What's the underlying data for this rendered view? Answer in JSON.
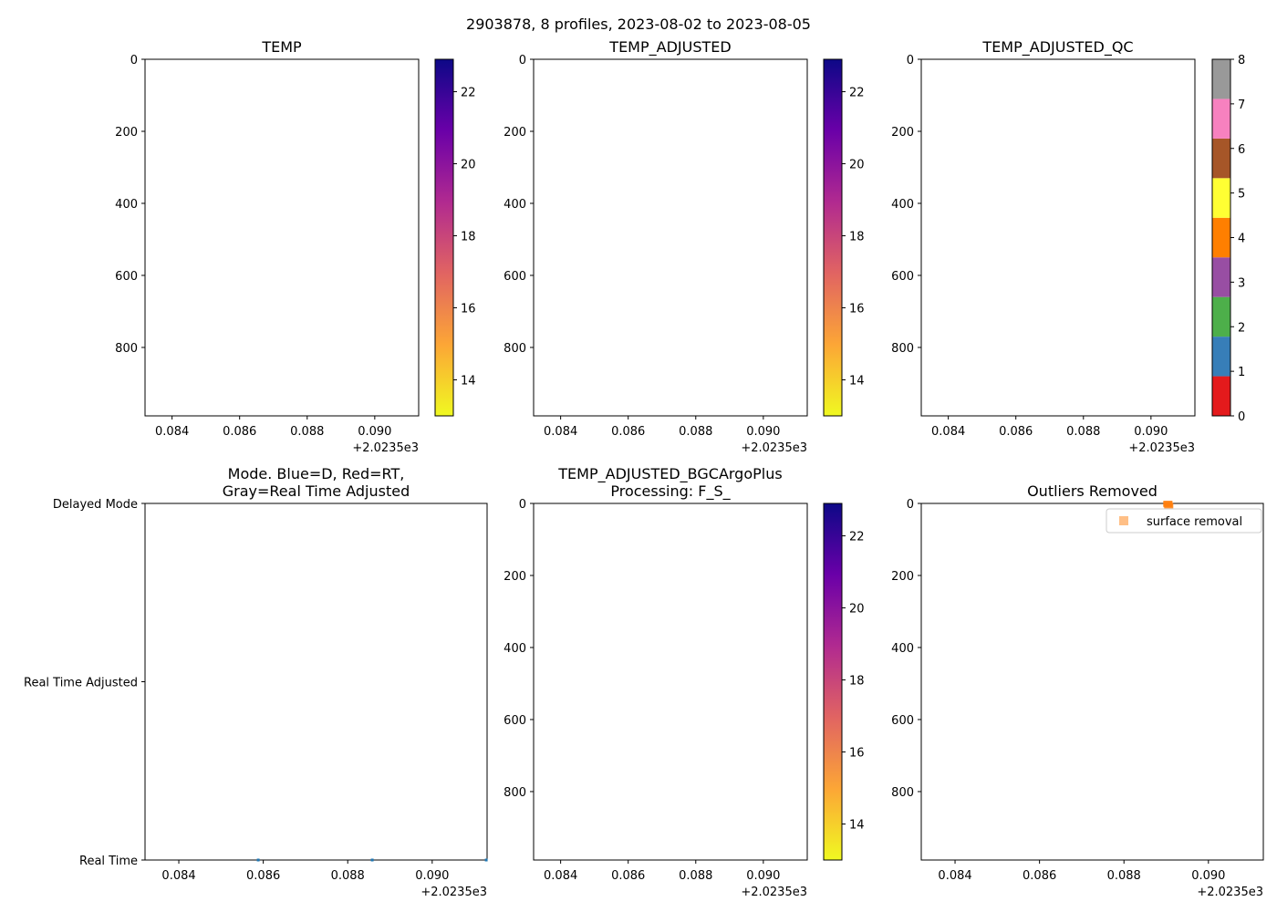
{
  "figure_title": "2903878, 8 profiles, 2023-08-02 to 2023-08-05",
  "chart_data": [
    {
      "id": "temp",
      "type": "heatmap",
      "title": "TEMP",
      "x_ticks": [
        "0.084",
        "0.086",
        "0.088",
        "0.090"
      ],
      "x_tick_values": [
        0.084,
        0.086,
        0.088,
        0.09
      ],
      "xlim": [
        0.0832,
        0.0913
      ],
      "x_offset_label": "+2.0235e3",
      "y_ticks": [
        "0",
        "200",
        "400",
        "600",
        "800"
      ],
      "y_tick_values": [
        0,
        200,
        400,
        600,
        800
      ],
      "ylim": [
        990,
        0
      ],
      "y_inverted": true,
      "colorbar": {
        "type": "continuous",
        "colormap": "plasma_r",
        "range": [
          13.0,
          22.9
        ],
        "ticks": [
          "14",
          "16",
          "18",
          "20",
          "22"
        ],
        "tick_values": [
          14,
          16,
          18,
          20,
          22
        ]
      },
      "values": []
    },
    {
      "id": "temp_adjusted",
      "type": "heatmap",
      "title": "TEMP_ADJUSTED",
      "x_ticks": [
        "0.084",
        "0.086",
        "0.088",
        "0.090"
      ],
      "x_tick_values": [
        0.084,
        0.086,
        0.088,
        0.09
      ],
      "xlim": [
        0.0832,
        0.0913
      ],
      "x_offset_label": "+2.0235e3",
      "y_ticks": [
        "0",
        "200",
        "400",
        "600",
        "800"
      ],
      "y_tick_values": [
        0,
        200,
        400,
        600,
        800
      ],
      "ylim": [
        990,
        0
      ],
      "y_inverted": true,
      "colorbar": {
        "type": "continuous",
        "colormap": "plasma_r",
        "range": [
          13.0,
          22.9
        ],
        "ticks": [
          "14",
          "16",
          "18",
          "20",
          "22"
        ],
        "tick_values": [
          14,
          16,
          18,
          20,
          22
        ]
      },
      "values": []
    },
    {
      "id": "temp_adjusted_qc",
      "type": "heatmap",
      "title": "TEMP_ADJUSTED_QC",
      "x_ticks": [
        "0.084",
        "0.086",
        "0.088",
        "0.090"
      ],
      "x_tick_values": [
        0.084,
        0.086,
        0.088,
        0.09
      ],
      "xlim": [
        0.0832,
        0.0913
      ],
      "x_offset_label": "+2.0235e3",
      "y_ticks": [
        "0",
        "200",
        "400",
        "600",
        "800"
      ],
      "y_tick_values": [
        0,
        200,
        400,
        600,
        800
      ],
      "ylim": [
        990,
        0
      ],
      "y_inverted": true,
      "colorbar": {
        "type": "discrete",
        "range": [
          0,
          8
        ],
        "ticks": [
          "0",
          "1",
          "2",
          "3",
          "4",
          "5",
          "6",
          "7",
          "8"
        ],
        "tick_values": [
          0,
          1,
          2,
          3,
          4,
          5,
          6,
          7,
          8
        ],
        "segment_colors": [
          "#e41a1c",
          "#377eb8",
          "#4daf4a",
          "#984ea3",
          "#ff7f00",
          "#ffff33",
          "#a65628",
          "#f781bf",
          "#999999"
        ]
      },
      "values": []
    },
    {
      "id": "mode",
      "type": "scatter",
      "title_lines": [
        "Mode. Blue=D, Red=RT,",
        "Gray=Real Time Adjusted"
      ],
      "x_ticks": [
        "0.084",
        "0.086",
        "0.088",
        "0.090"
      ],
      "x_tick_values": [
        0.084,
        0.086,
        0.088,
        0.09
      ],
      "xlim": [
        0.0832,
        0.0913
      ],
      "x_offset_label": "+2.0235e3",
      "y_ticks": [
        "Delayed Mode",
        "Real Time Adjusted",
        "Real Time"
      ],
      "y_tick_values": [
        2,
        1,
        0
      ],
      "ylim": [
        0,
        2
      ],
      "points": [
        {
          "x": 0.08588,
          "y": 0,
          "color": "#1f77b4"
        },
        {
          "x": 0.08858,
          "y": 0,
          "color": "#1f77b4"
        },
        {
          "x": 0.09128,
          "y": 0,
          "color": "#1f77b4"
        }
      ]
    },
    {
      "id": "bgc_argo_plus",
      "type": "heatmap",
      "title_lines": [
        "TEMP_ADJUSTED_BGCArgoPlus",
        "Processing: F_S_"
      ],
      "x_ticks": [
        "0.084",
        "0.086",
        "0.088",
        "0.090"
      ],
      "x_tick_values": [
        0.084,
        0.086,
        0.088,
        0.09
      ],
      "xlim": [
        0.0832,
        0.0913
      ],
      "x_offset_label": "+2.0235e3",
      "y_ticks": [
        "0",
        "200",
        "400",
        "600",
        "800"
      ],
      "y_tick_values": [
        0,
        200,
        400,
        600,
        800
      ],
      "ylim": [
        990,
        0
      ],
      "y_inverted": true,
      "colorbar": {
        "type": "continuous",
        "colormap": "plasma_r",
        "range": [
          13.0,
          22.9
        ],
        "ticks": [
          "14",
          "16",
          "18",
          "20",
          "22"
        ],
        "tick_values": [
          14,
          16,
          18,
          20,
          22
        ]
      },
      "values": []
    },
    {
      "id": "outliers",
      "type": "scatter",
      "title": "Outliers Removed",
      "x_ticks": [
        "0.084",
        "0.086",
        "0.088",
        "0.090"
      ],
      "x_tick_values": [
        0.084,
        0.086,
        0.088,
        0.09
      ],
      "xlim": [
        0.0832,
        0.0913
      ],
      "x_offset_label": "+2.0235e3",
      "y_ticks": [
        "0",
        "200",
        "400",
        "600",
        "800"
      ],
      "y_tick_values": [
        0,
        200,
        400,
        600,
        800
      ],
      "ylim": [
        990,
        0
      ],
      "y_inverted": true,
      "legend": {
        "location": "top-right",
        "entries": [
          {
            "label": "surface removal",
            "color": "#ff7f0e",
            "alpha": 0.5
          }
        ]
      },
      "points": [
        {
          "x": 0.08904,
          "y": 0,
          "color": "#ff7f0e"
        },
        {
          "x": 0.08904,
          "y": 3,
          "color": "#ff7f0e"
        },
        {
          "x": 0.08906,
          "y": 6,
          "color": "#ff7f0e"
        }
      ]
    }
  ]
}
